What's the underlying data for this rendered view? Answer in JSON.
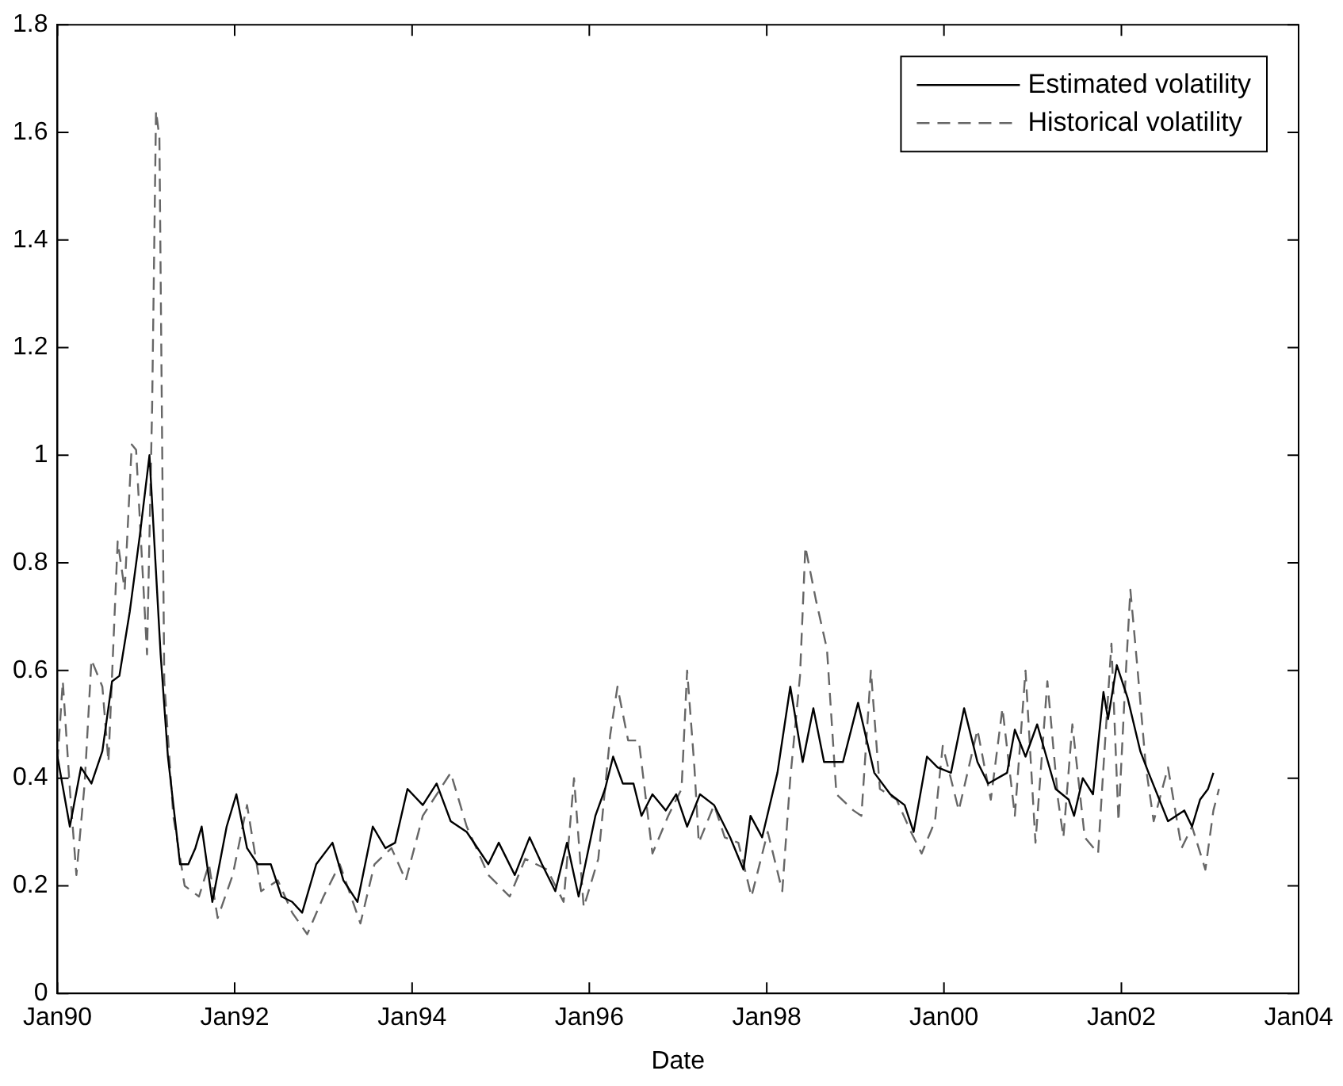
{
  "chart_data": {
    "type": "line",
    "xlabel": "Date",
    "xlim": [
      "1990-01",
      "2004-01"
    ],
    "xticks": [
      {
        "value": "1990-01",
        "label": "Jan90"
      },
      {
        "value": "1992-01",
        "label": "Jan92"
      },
      {
        "value": "1994-01",
        "label": "Jan94"
      },
      {
        "value": "1996-01",
        "label": "Jan96"
      },
      {
        "value": "1998-01",
        "label": "Jan98"
      },
      {
        "value": "2000-01",
        "label": "Jan00"
      },
      {
        "value": "2002-01",
        "label": "Jan02"
      },
      {
        "value": "2004-01",
        "label": "Jan04"
      }
    ],
    "ylim": [
      0,
      1.8
    ],
    "yticks": [
      0,
      0.2,
      0.4,
      0.6,
      0.8,
      1,
      1.2,
      1.4,
      1.6,
      1.8
    ],
    "grid": false,
    "legend": "top right",
    "marker": "none",
    "series": [
      {
        "name": "Estimated volatility",
        "color": "#000000",
        "line_style": "solid",
        "x": [
          "1990-01-01",
          "1990-02-21",
          "1990-04-08",
          "1990-05-21",
          "1990-07-05",
          "1990-08-14",
          "1990-09-13",
          "1990-10-26",
          "1990-12-06",
          "1991-01-15",
          "1991-03-02",
          "1991-04-01",
          "1991-05-21",
          "1991-06-24",
          "1991-07-23",
          "1991-08-18",
          "1991-10-01",
          "1991-11-29",
          "1992-01-08",
          "1992-02-21",
          "1992-04-05",
          "1992-05-29",
          "1992-07-12",
          "1992-08-25",
          "1992-10-05",
          "1992-12-02",
          "1993-02-07",
          "1993-03-24",
          "1993-05-21",
          "1993-07-23",
          "1993-09-13",
          "1993-10-23",
          "1993-12-13",
          "1994-02-14",
          "1994-04-12",
          "1994-06-09",
          "1994-08-14",
          "1994-11-11",
          "1994-12-24",
          "1995-02-28",
          "1995-04-30",
          "1995-06-20",
          "1995-08-14",
          "1995-10-01",
          "1995-11-18",
          "1996-01-26",
          "1996-03-06",
          "1996-04-08",
          "1996-05-18",
          "1996-07-01",
          "1996-08-03",
          "1996-09-17",
          "1996-11-11",
          "1996-12-24",
          "1997-02-07",
          "1997-04-01",
          "1997-05-29",
          "1997-08-03",
          "1997-09-27",
          "1997-10-26",
          "1997-12-13",
          "1998-02-14",
          "1998-04-08",
          "1998-05-29",
          "1998-07-12",
          "1998-08-25",
          "1998-11-11",
          "1999-01-12",
          "1999-03-20",
          "1999-05-25",
          "1999-07-23",
          "1999-08-29",
          "1999-10-23",
          "1999-12-06",
          "2000-01-30",
          "2000-03-24",
          "2000-05-18",
          "2000-07-01",
          "2000-09-17",
          "2000-10-19",
          "2000-12-02",
          "2001-01-19",
          "2001-04-05",
          "2001-05-29",
          "2001-06-20",
          "2001-07-26",
          "2001-09-06",
          "2001-10-19",
          "2001-11-07",
          "2001-12-13",
          "2002-01-26",
          "2002-03-20",
          "2002-04-23",
          "2002-07-12",
          "2002-09-17",
          "2002-10-19",
          "2002-11-21",
          "2002-12-24",
          "2003-01-15"
        ],
        "values": [
          0.44,
          0.31,
          0.42,
          0.39,
          0.45,
          0.58,
          0.59,
          0.71,
          0.85,
          1.0,
          0.63,
          0.44,
          0.24,
          0.24,
          0.27,
          0.31,
          0.17,
          0.31,
          0.37,
          0.27,
          0.24,
          0.24,
          0.18,
          0.17,
          0.15,
          0.24,
          0.28,
          0.21,
          0.17,
          0.31,
          0.27,
          0.28,
          0.38,
          0.35,
          0.39,
          0.32,
          0.3,
          0.24,
          0.28,
          0.22,
          0.29,
          0.24,
          0.19,
          0.28,
          0.18,
          0.33,
          0.38,
          0.44,
          0.39,
          0.39,
          0.33,
          0.37,
          0.34,
          0.37,
          0.31,
          0.37,
          0.35,
          0.29,
          0.23,
          0.33,
          0.29,
          0.41,
          0.57,
          0.43,
          0.53,
          0.43,
          0.43,
          0.54,
          0.41,
          0.37,
          0.35,
          0.3,
          0.44,
          0.42,
          0.41,
          0.53,
          0.43,
          0.39,
          0.41,
          0.49,
          0.44,
          0.5,
          0.38,
          0.36,
          0.33,
          0.4,
          0.37,
          0.56,
          0.51,
          0.61,
          0.55,
          0.45,
          0.41,
          0.32,
          0.34,
          0.31,
          0.36,
          0.38,
          0.41
        ]
      },
      {
        "name": "Historical volatility",
        "color": "#666666",
        "line_style": "dashed",
        "x": [
          "1990-01-01",
          "1990-01-23",
          "1990-02-21",
          "1990-03-20",
          "1990-04-23",
          "1990-05-21",
          "1990-07-05",
          "1990-07-30",
          "1990-09-06",
          "1990-10-05",
          "1990-11-03",
          "1990-11-21",
          "1991-01-05",
          "1991-01-26",
          "1991-02-11",
          "1991-02-25",
          "1991-03-17",
          "1991-04-23",
          "1991-06-09",
          "1991-08-07",
          "1991-09-17",
          "1991-10-23",
          "1991-12-24",
          "1992-02-21",
          "1992-04-19",
          "1992-06-27",
          "1992-08-25",
          "1992-10-26",
          "1993-01-01",
          "1993-03-09",
          "1993-06-02",
          "1993-07-30",
          "1993-10-08",
          "1993-12-06",
          "1994-02-14",
          "1994-06-09",
          "1994-08-14",
          "1994-11-11",
          "1995-02-07",
          "1995-04-12",
          "1995-07-12",
          "1995-09-17",
          "1995-10-30",
          "1995-12-09",
          "1996-02-07",
          "1996-03-27",
          "1996-04-26",
          "1996-06-09",
          "1996-07-23",
          "1996-09-17",
          "1996-11-21",
          "1997-01-15",
          "1997-02-07",
          "1997-03-09",
          "1997-03-27",
          "1997-05-29",
          "1997-07-12",
          "1997-09-06",
          "1997-10-30",
          "1998-01-05",
          "1998-03-06",
          "1998-04-08",
          "1998-05-18",
          "1998-06-09",
          "1998-07-23",
          "1998-09-06",
          "1998-10-15",
          "1998-12-24",
          "1999-01-26",
          "1999-03-06",
          "1999-04-12",
          "1999-06-20",
          "1999-08-18",
          "1999-10-01",
          "1999-11-25",
          "1999-12-27",
          "2000-03-02",
          "2000-05-18",
          "2000-07-12",
          "2000-08-29",
          "2000-10-19",
          "2000-12-02",
          "2001-01-12",
          "2001-03-02",
          "2001-04-15",
          "2001-05-07",
          "2001-06-13",
          "2001-08-03",
          "2001-09-27",
          "2001-10-19",
          "2001-11-21",
          "2001-12-20",
          "2002-01-15",
          "2002-02-07",
          "2002-03-09",
          "2002-04-12",
          "2002-05-14",
          "2002-07-12",
          "2002-09-06",
          "2002-10-19",
          "2002-12-13",
          "2003-01-15",
          "2003-02-07"
        ],
        "values": [
          0.43,
          0.58,
          0.38,
          0.22,
          0.39,
          0.62,
          0.57,
          0.43,
          0.84,
          0.75,
          1.02,
          1.01,
          0.63,
          1.09,
          1.64,
          1.59,
          0.58,
          0.33,
          0.2,
          0.18,
          0.24,
          0.14,
          0.22,
          0.35,
          0.19,
          0.21,
          0.15,
          0.11,
          0.18,
          0.24,
          0.13,
          0.24,
          0.27,
          0.21,
          0.33,
          0.41,
          0.31,
          0.22,
          0.18,
          0.25,
          0.23,
          0.17,
          0.4,
          0.16,
          0.25,
          0.48,
          0.57,
          0.47,
          0.47,
          0.26,
          0.33,
          0.38,
          0.6,
          0.42,
          0.28,
          0.35,
          0.29,
          0.28,
          0.18,
          0.3,
          0.19,
          0.4,
          0.59,
          0.83,
          0.73,
          0.64,
          0.37,
          0.34,
          0.33,
          0.6,
          0.38,
          0.36,
          0.3,
          0.26,
          0.32,
          0.46,
          0.34,
          0.49,
          0.36,
          0.53,
          0.33,
          0.6,
          0.28,
          0.58,
          0.36,
          0.29,
          0.5,
          0.29,
          0.26,
          0.42,
          0.65,
          0.32,
          0.56,
          0.75,
          0.6,
          0.42,
          0.32,
          0.42,
          0.27,
          0.31,
          0.23,
          0.34,
          0.38
        ]
      }
    ]
  }
}
